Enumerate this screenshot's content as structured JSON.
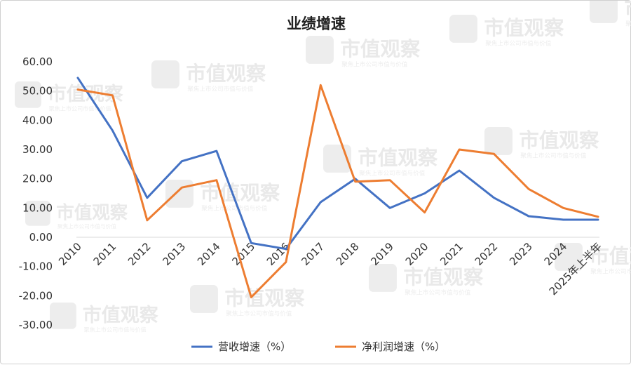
{
  "watermark": {
    "text": "市值观察",
    "subtext": "聚焦上市公司市值与价值"
  },
  "chart_data": {
    "type": "line",
    "title": "业绩增速",
    "categories": [
      "2010",
      "2011",
      "2012",
      "2013",
      "2014",
      "2015",
      "2016",
      "2017",
      "2018",
      "2019",
      "2020",
      "2021",
      "2022",
      "2023",
      "2024",
      "2025年上半年"
    ],
    "ylim": [
      -30,
      60
    ],
    "yticks": [
      "60.00",
      "50.00",
      "40.00",
      "30.00",
      "20.00",
      "10.00",
      "0.00",
      "-10.00",
      "-20.00",
      "-30.00"
    ],
    "grid": false,
    "legend_position": "bottom",
    "series": [
      {
        "name": "营收增速（%）",
        "color": "#4472c4",
        "values": [
          54.5,
          36.5,
          13.5,
          26.0,
          29.5,
          -2.0,
          -4.0,
          12.0,
          20.0,
          10.0,
          15.0,
          22.8,
          13.5,
          7.2,
          6.0,
          6.0
        ]
      },
      {
        "name": "净利润增速（%）",
        "color": "#ed7d31",
        "values": [
          50.5,
          48.5,
          5.8,
          17.0,
          19.5,
          -20.5,
          -8.5,
          52.0,
          19.0,
          19.5,
          8.5,
          30.0,
          28.5,
          16.5,
          10.0,
          7.0
        ]
      }
    ]
  }
}
